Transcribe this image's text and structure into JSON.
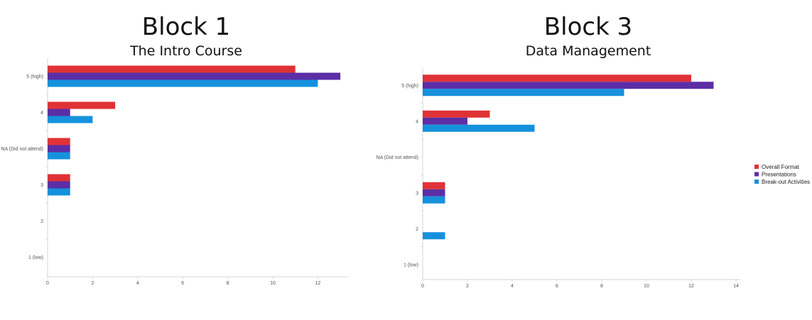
{
  "colors": {
    "s0": "#e03236",
    "s1": "#5b2ea6",
    "s2": "#1591dc"
  },
  "legend": {
    "position": "right",
    "items": [
      "Overall Format",
      "Presentations",
      "Break-out Activities"
    ]
  },
  "chart_data": [
    {
      "type": "bar",
      "orientation": "horizontal",
      "title": "Block 1",
      "subtitle": "The Intro Course",
      "categories": [
        "5 (high)",
        "4",
        "NA (Did not attend)",
        "3",
        "2",
        "1 (low)"
      ],
      "series": [
        {
          "name": "Overall Format",
          "values": [
            11,
            3,
            1,
            1,
            0,
            0
          ]
        },
        {
          "name": "Presentations",
          "values": [
            13,
            1,
            1,
            1,
            0,
            0
          ]
        },
        {
          "name": "Break-out Activities",
          "values": [
            12,
            2,
            1,
            1,
            0,
            0
          ]
        }
      ],
      "xlim": [
        0,
        13
      ],
      "xticks": [
        0,
        2,
        4,
        6,
        8,
        10,
        12
      ],
      "xlabel": "",
      "ylabel": "",
      "grid": false
    },
    {
      "type": "bar",
      "orientation": "horizontal",
      "title": "Block 3",
      "subtitle": "Data Management",
      "categories": [
        "5 (high)",
        "4",
        "NA (Did not attend)",
        "3",
        "2",
        "1 (low)"
      ],
      "series": [
        {
          "name": "Overall Format",
          "values": [
            12,
            3,
            0,
            1,
            0,
            0
          ]
        },
        {
          "name": "Presentations",
          "values": [
            13,
            2,
            0,
            1,
            0,
            0
          ]
        },
        {
          "name": "Break-out Activities",
          "values": [
            9,
            5,
            0,
            1,
            1,
            0
          ]
        }
      ],
      "xlim": [
        0,
        14
      ],
      "xticks": [
        0,
        2,
        4,
        6,
        8,
        10,
        12,
        14
      ],
      "xlabel": "",
      "ylabel": "",
      "grid": false
    }
  ]
}
